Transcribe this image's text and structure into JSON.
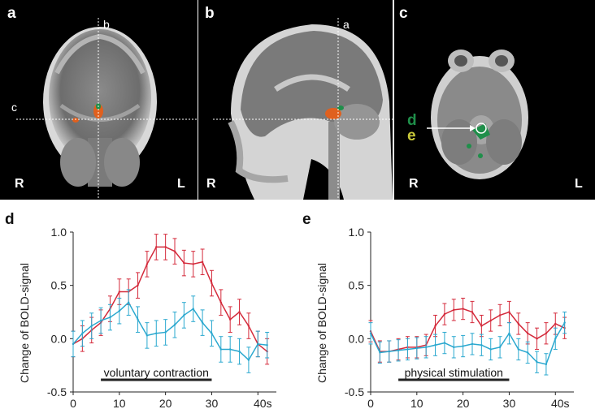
{
  "panels": {
    "a": {
      "label": "a",
      "line_v": "b",
      "line_h": "c",
      "left": "R",
      "right": "L"
    },
    "b": {
      "label": "b",
      "line_v": "a",
      "left": "R"
    },
    "c": {
      "label": "c",
      "left": "R",
      "right": "L",
      "roi_d": "d",
      "roi_e": "e"
    }
  },
  "colors": {
    "contraction": "#d42a3b",
    "stimulation": "#2aa8cf",
    "roi_d": "#1f8f4a",
    "roi_e": "#c9c93a",
    "activation": "#e0601e"
  },
  "chart_data": [
    {
      "panel": "d",
      "type": "line",
      "title": "d",
      "ylabel": "Change of BOLD-signal",
      "xlabel": "",
      "xlim": [
        0,
        44
      ],
      "ylim": [
        -0.5,
        1.0
      ],
      "xticks": [
        "0",
        "10",
        "20",
        "30",
        "40s"
      ],
      "yticks": [
        "1.0",
        "0.5",
        "0.0",
        "-0.5"
      ],
      "condition_label": "voluntary contraction",
      "condition_bar": [
        6,
        30
      ],
      "x": [
        0,
        2,
        4,
        6,
        8,
        10,
        12,
        14,
        16,
        18,
        20,
        22,
        24,
        26,
        28,
        30,
        32,
        34,
        36,
        38,
        40,
        42
      ],
      "series": [
        {
          "color": "red",
          "values": [
            -0.05,
            0.0,
            0.08,
            0.15,
            0.28,
            0.44,
            0.44,
            0.5,
            0.7,
            0.86,
            0.86,
            0.82,
            0.71,
            0.7,
            0.72,
            0.52,
            0.34,
            0.18,
            0.25,
            0.12,
            -0.05,
            -0.12
          ],
          "error": 0.12
        },
        {
          "color": "blue",
          "values": [
            -0.05,
            0.05,
            0.12,
            0.17,
            0.2,
            0.26,
            0.34,
            0.18,
            0.03,
            0.05,
            0.06,
            0.13,
            0.22,
            0.28,
            0.15,
            0.05,
            -0.1,
            -0.1,
            -0.12,
            -0.2,
            -0.05,
            -0.06
          ],
          "error": 0.12
        }
      ]
    },
    {
      "panel": "e",
      "type": "line",
      "title": "e",
      "ylabel": "Change of BOLD-signal",
      "xlabel": "",
      "xlim": [
        0,
        44
      ],
      "ylim": [
        -0.5,
        1.0
      ],
      "xticks": [
        "0",
        "10",
        "20",
        "30",
        "40s"
      ],
      "yticks": [
        "1.0",
        "0.5",
        "0.0",
        "-0.5"
      ],
      "condition_label": "physical stimulation",
      "condition_bar": [
        6,
        30
      ],
      "x": [
        0,
        2,
        4,
        6,
        8,
        10,
        12,
        14,
        16,
        18,
        20,
        22,
        24,
        26,
        28,
        30,
        32,
        34,
        36,
        38,
        40,
        42
      ],
      "series": [
        {
          "color": "red",
          "values": [
            0.07,
            -0.12,
            -0.12,
            -0.1,
            -0.08,
            -0.08,
            -0.06,
            0.12,
            0.23,
            0.27,
            0.28,
            0.25,
            0.12,
            0.17,
            0.22,
            0.25,
            0.14,
            0.05,
            0.0,
            0.05,
            0.14,
            0.1
          ],
          "error": 0.1
        },
        {
          "color": "blue",
          "values": [
            0.05,
            -0.13,
            -0.12,
            -0.11,
            -0.1,
            -0.09,
            -0.08,
            -0.06,
            -0.04,
            -0.08,
            -0.07,
            -0.05,
            -0.06,
            -0.1,
            -0.08,
            0.05,
            -0.1,
            -0.13,
            -0.22,
            -0.24,
            0.0,
            0.15
          ],
          "error": 0.1
        }
      ]
    }
  ]
}
